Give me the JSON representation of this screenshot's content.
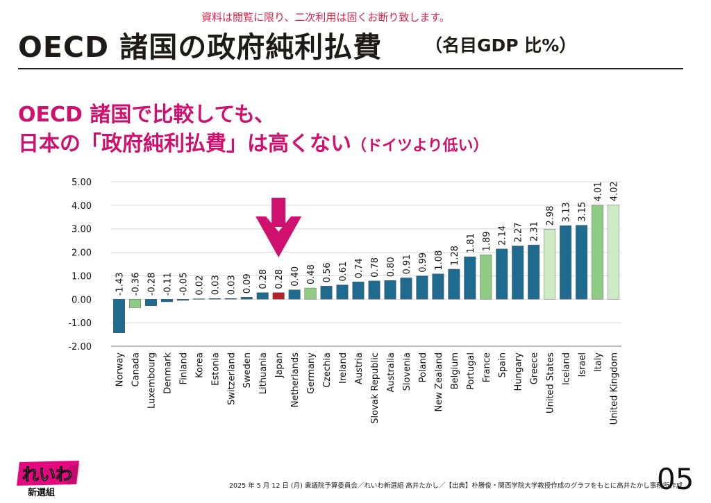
{
  "notice": "資料は閲覧に限り、二次利用は固くお断り致します。",
  "title": "OECD 諸国の政府純利払費",
  "subtitle": "（名目GDP 比%）",
  "headline": {
    "line1": "OECD 諸国で比較しても、",
    "line2": "日本の「政府純利払費」は高くない",
    "line2_small": "（ドイツより低い）"
  },
  "chart_data": {
    "type": "bar",
    "categories": [
      "Norway",
      "Canada",
      "Luxembourg",
      "Denmark",
      "Finland",
      "Korea",
      "Estonia",
      "Switzerland",
      "Sweden",
      "Lithuania",
      "Japan",
      "Netherlands",
      "Germany",
      "Czechia",
      "Ireland",
      "Austria",
      "Slovak Republic",
      "Australia",
      "Slovenia",
      "Poland",
      "New Zealand",
      "Belgium",
      "Portugal",
      "France",
      "Spain",
      "Hungary",
      "Greece",
      "United States",
      "Iceland",
      "Israel",
      "Italy",
      "United Kingdom"
    ],
    "values": [
      -1.43,
      -0.36,
      -0.28,
      -0.11,
      -0.05,
      0.02,
      0.03,
      0.03,
      0.09,
      0.28,
      0.28,
      0.4,
      0.48,
      0.56,
      0.61,
      0.74,
      0.78,
      0.8,
      0.91,
      0.99,
      1.08,
      1.28,
      1.81,
      1.89,
      2.14,
      2.27,
      2.31,
      2.98,
      3.13,
      3.15,
      4.01,
      4.02
    ],
    "value_labels": [
      "-1.43",
      "-0.36",
      "-0.28",
      "-0.11",
      "-0.05",
      "0.02",
      "0.03",
      "0.03",
      "0.09",
      "0.28",
      "0.28",
      "0.40",
      "0.48",
      "0.56",
      "0.61",
      "0.74",
      "0.78",
      "0.80",
      "0.91",
      "0.99",
      "1.08",
      "1.28",
      "1.81",
      "1.89",
      "2.14",
      "2.27",
      "2.31",
      "2.98",
      "3.13",
      "3.15",
      "4.01",
      "4.02"
    ],
    "highlight_groups": [
      "blue",
      "green",
      "blue",
      "blue",
      "blue",
      "blue",
      "blue",
      "blue",
      "blue",
      "blue",
      "red",
      "blue",
      "green",
      "blue",
      "blue",
      "blue",
      "blue",
      "blue",
      "blue",
      "blue",
      "blue",
      "blue",
      "blue",
      "green",
      "blue",
      "blue",
      "blue",
      "lightgreen",
      "blue",
      "blue",
      "green",
      "lightgreen"
    ],
    "ylim": [
      -2.0,
      5.0
    ],
    "yticks": [
      "-2.00",
      "-1.00",
      "0.00",
      "1.00",
      "2.00",
      "3.00",
      "4.00",
      "5.00"
    ],
    "ytick_values": [
      -2,
      -1,
      0,
      1,
      2,
      3,
      4,
      5
    ],
    "grid": true,
    "arrow_target": "Japan",
    "colors": {
      "blue": "#1f6b8f",
      "green": "#8fcb84",
      "lightgreen": "#cdebc4",
      "red": "#b3202a",
      "arrow": "#d0106e",
      "grid": "#d9d9d9"
    }
  },
  "logo": {
    "text": "れいわ",
    "subtext": "新選組"
  },
  "footer": "2025 年 5 月 12 日 (月) 衆議院予算委員会／れいわ新選組 高井たかし／【出典】朴勝俊・関西学院大学教授作成のグラフをもとに高井たかし事務所作成",
  "page_number": "05"
}
